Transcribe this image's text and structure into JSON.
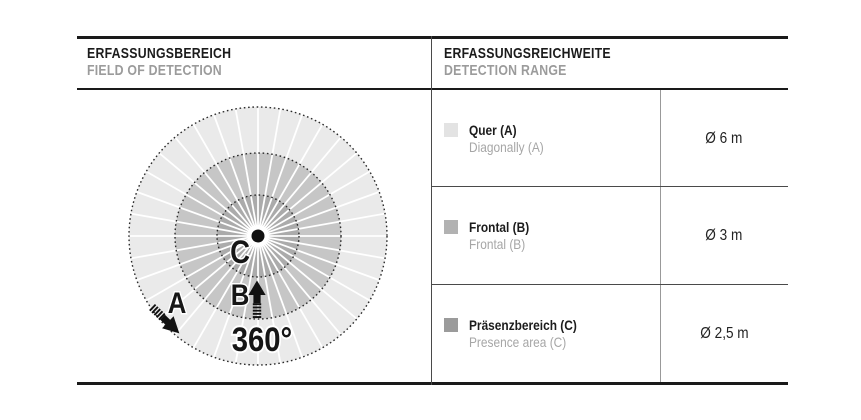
{
  "left_panel": {
    "title": "ERFASSUNGSBEREICH",
    "subtitle": "FIELD OF DETECTION",
    "diagram": {
      "rotation_label": "360°",
      "labels": {
        "a": "A",
        "b": "B",
        "c": "C"
      },
      "zones": [
        {
          "id": "A",
          "name": "outer",
          "color": "#eaeaea"
        },
        {
          "id": "B",
          "name": "middle",
          "color": "#c6c6c6"
        },
        {
          "id": "C",
          "name": "inner",
          "color": "#ababab"
        }
      ]
    }
  },
  "right_panel": {
    "title": "ERFASSUNGSREICHWEITE",
    "subtitle": "DETECTION RANGE",
    "rows": [
      {
        "swatch_color": "#e3e3e3",
        "label": "Quer (A)",
        "sublabel": "Diagonally (A)",
        "value": "Ø 6 m"
      },
      {
        "swatch_color": "#b2b2b2",
        "label": "Frontal (B)",
        "sublabel": "Frontal (B)",
        "value": "Ø 3 m"
      },
      {
        "swatch_color": "#9b9b9b",
        "label": "Präsenzbereich (C)",
        "sublabel": "Presence area (C)",
        "value": "Ø 2,5 m"
      }
    ]
  }
}
